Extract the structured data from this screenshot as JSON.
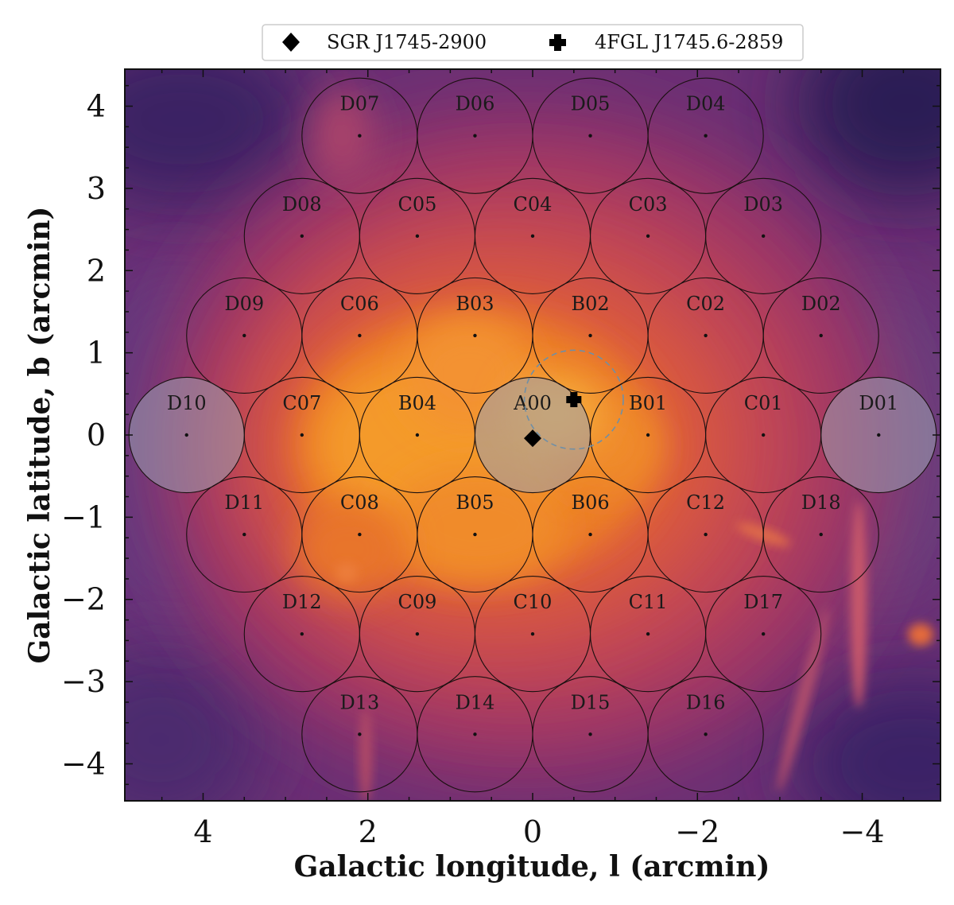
{
  "chart_data": {
    "type": "scatter",
    "background": "radio continuum image (inferno colormap) of the Galactic Center region",
    "xlabel": "Galactic longitude, l (arcmin)",
    "ylabel": "Galactic latitude, b (arcmin)",
    "xlim": [
      4.95,
      -4.95
    ],
    "ylim": [
      -4.45,
      4.45
    ],
    "xticks": [
      -4,
      -2,
      0,
      2,
      4
    ],
    "yticks": [
      -4,
      -3,
      -2,
      -1,
      0,
      1,
      2,
      3,
      4
    ],
    "xtick_labels": [
      "−4",
      "−2",
      "0",
      "2",
      "4"
    ],
    "ytick_labels": [
      "−4",
      "−3",
      "−2",
      "−1",
      "0",
      "1",
      "2",
      "3",
      "4"
    ],
    "beam_radius_arcmin": 0.7,
    "beams": [
      {
        "name": "A00",
        "l": 0.0,
        "b": 0.0,
        "shaded": true
      },
      {
        "name": "B01",
        "l": -1.4,
        "b": 0.0
      },
      {
        "name": "B02",
        "l": -0.7,
        "b": 1.21
      },
      {
        "name": "B03",
        "l": 0.7,
        "b": 1.21
      },
      {
        "name": "B04",
        "l": 1.4,
        "b": 0.0
      },
      {
        "name": "B05",
        "l": 0.7,
        "b": -1.21
      },
      {
        "name": "B06",
        "l": -0.7,
        "b": -1.21
      },
      {
        "name": "C01",
        "l": -2.8,
        "b": 0.0
      },
      {
        "name": "C02",
        "l": -2.1,
        "b": 1.21
      },
      {
        "name": "C03",
        "l": -1.4,
        "b": 2.42
      },
      {
        "name": "C04",
        "l": 0.0,
        "b": 2.42
      },
      {
        "name": "C05",
        "l": 1.4,
        "b": 2.42
      },
      {
        "name": "C06",
        "l": 2.1,
        "b": 1.21
      },
      {
        "name": "C07",
        "l": 2.8,
        "b": 0.0
      },
      {
        "name": "C08",
        "l": 2.1,
        "b": -1.21
      },
      {
        "name": "C09",
        "l": 1.4,
        "b": -2.42
      },
      {
        "name": "C10",
        "l": 0.0,
        "b": -2.42
      },
      {
        "name": "C11",
        "l": -1.4,
        "b": -2.42
      },
      {
        "name": "C12",
        "l": -2.1,
        "b": -1.21
      },
      {
        "name": "D01",
        "l": -4.2,
        "b": 0.0,
        "shaded": true
      },
      {
        "name": "D02",
        "l": -3.5,
        "b": 1.21
      },
      {
        "name": "D03",
        "l": -2.8,
        "b": 2.42
      },
      {
        "name": "D04",
        "l": -2.1,
        "b": 3.64
      },
      {
        "name": "D05",
        "l": -0.7,
        "b": 3.64
      },
      {
        "name": "D06",
        "l": 0.7,
        "b": 3.64
      },
      {
        "name": "D07",
        "l": 2.1,
        "b": 3.64
      },
      {
        "name": "D08",
        "l": 2.8,
        "b": 2.42
      },
      {
        "name": "D09",
        "l": 3.5,
        "b": 1.21
      },
      {
        "name": "D10",
        "l": 4.2,
        "b": 0.0,
        "shaded": true
      },
      {
        "name": "D11",
        "l": 3.5,
        "b": -1.21
      },
      {
        "name": "D12",
        "l": 2.8,
        "b": -2.42
      },
      {
        "name": "D13",
        "l": 2.1,
        "b": -3.64
      },
      {
        "name": "D14",
        "l": 0.7,
        "b": -3.64
      },
      {
        "name": "D15",
        "l": -0.7,
        "b": -3.64
      },
      {
        "name": "D16",
        "l": -2.1,
        "b": -3.64
      },
      {
        "name": "D17",
        "l": -2.8,
        "b": -2.42
      },
      {
        "name": "D18",
        "l": -3.5,
        "b": -1.21
      }
    ],
    "sources": [
      {
        "name": "SGR J1745-2900",
        "l": 0.0,
        "b": -0.04,
        "marker": "diamond"
      },
      {
        "name": "4FGL J1745.6-2859",
        "l": -0.5,
        "b": 0.43,
        "marker": "plus",
        "error_radius_arcmin": 0.6
      }
    ],
    "legend": {
      "location": "top",
      "entries": [
        {
          "label": "SGR J1745-2900",
          "marker": "diamond"
        },
        {
          "label": "4FGL J1745.6-2859",
          "marker": "plus"
        }
      ]
    }
  },
  "colors": {
    "beam_outline": "#1a1010",
    "shaded_beam_fill": "#9aa0b0",
    "error_circle": "#6f8fa6",
    "marker": "#000000",
    "colormap": [
      "#2a1e52",
      "#5a2877",
      "#8a3070",
      "#b7415a",
      "#dc5b3c",
      "#f08a24",
      "#f6b33a"
    ]
  }
}
